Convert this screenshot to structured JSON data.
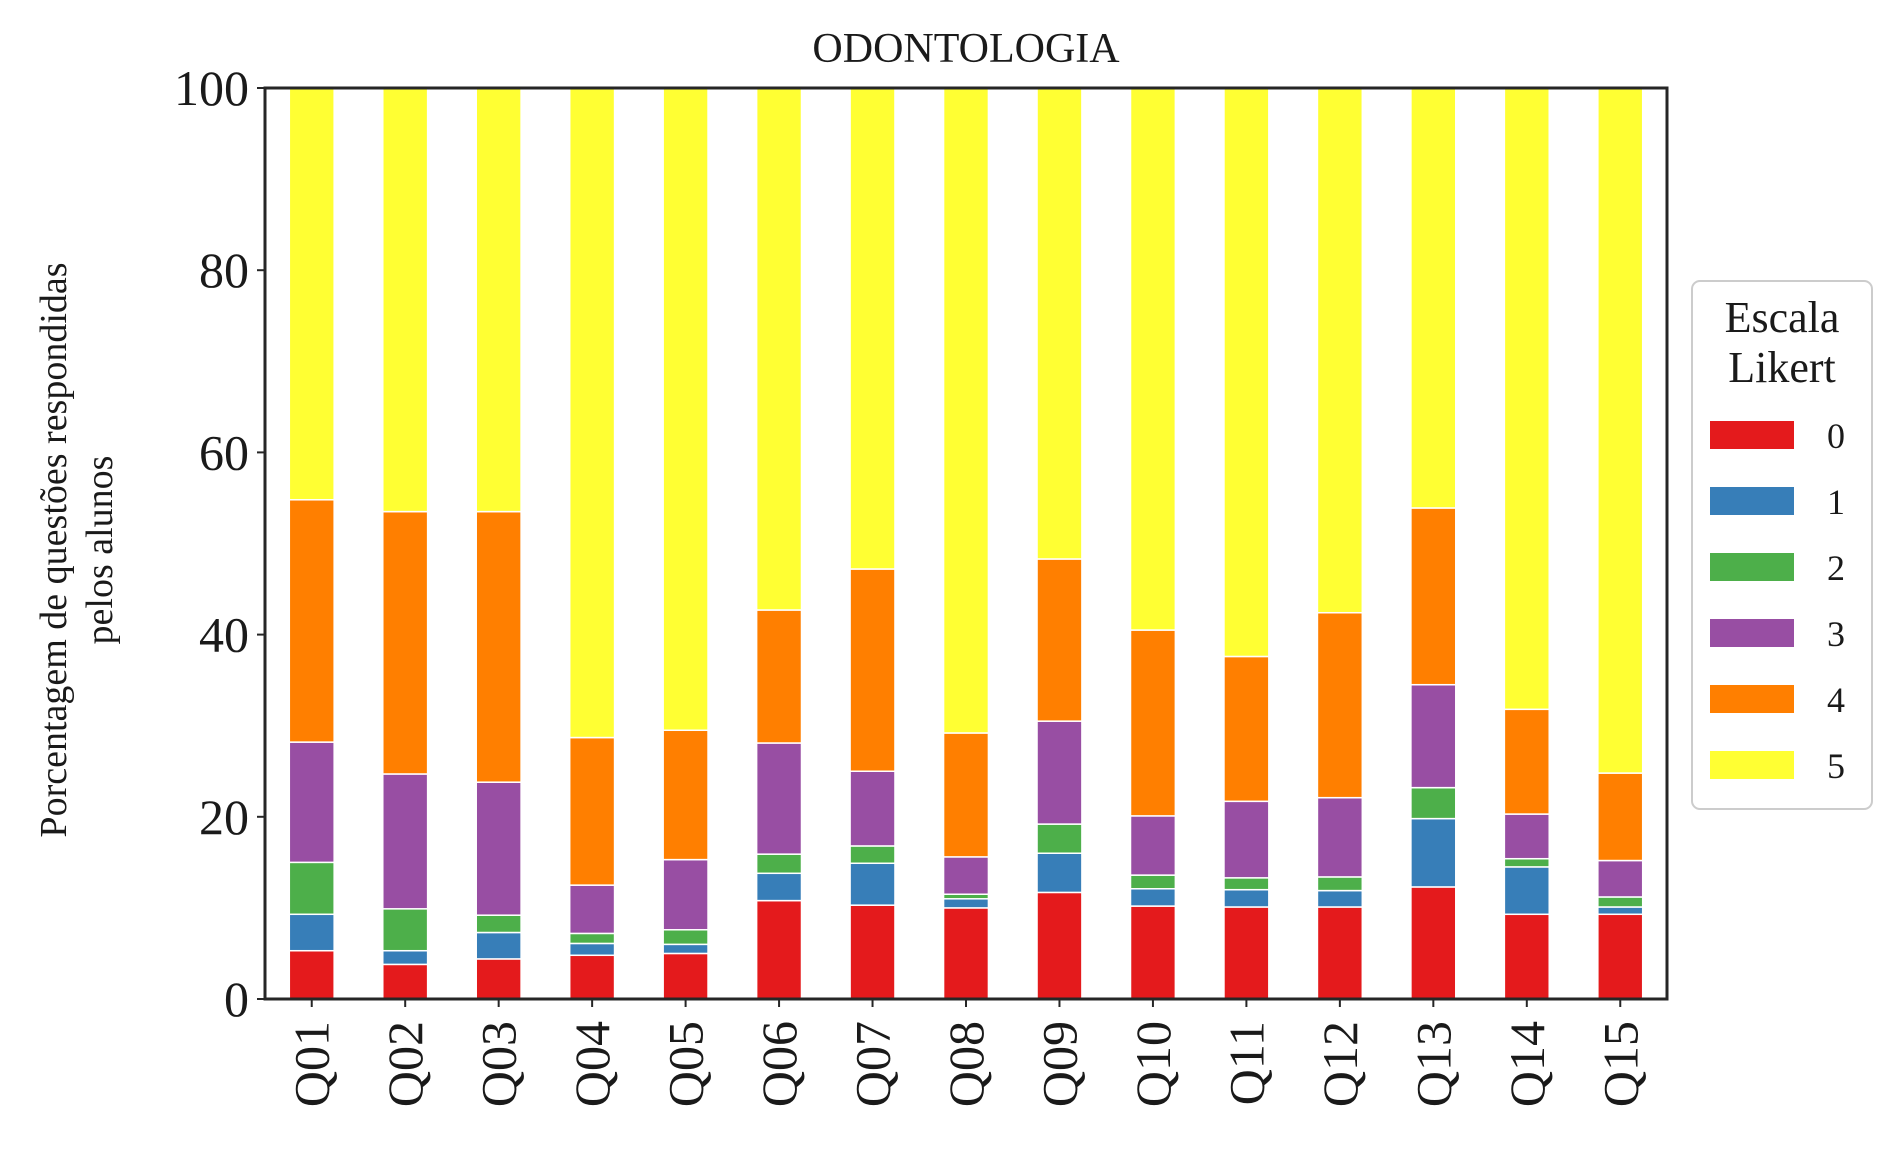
{
  "chart_data": {
    "type": "bar",
    "stacked": true,
    "title": "ODONTOLOGIA",
    "ylabel": "Porcentagem de questões respondidas pelos alunos",
    "ylabel_lines": [
      "Porcentagem de questões respondidas",
      "pelos alunos"
    ],
    "xlabel": "",
    "ylim": [
      0,
      100
    ],
    "yticks": [
      "0",
      "20",
      "40",
      "60",
      "80",
      "100"
    ],
    "categories": [
      "Q01",
      "Q02",
      "Q03",
      "Q04",
      "Q05",
      "Q06",
      "Q07",
      "Q08",
      "Q09",
      "Q10",
      "Q11",
      "Q12",
      "Q13",
      "Q14",
      "Q15"
    ],
    "grid": false,
    "legend": {
      "title": "Escala Likert",
      "title_lines": [
        "Escala",
        "Likert"
      ],
      "placement": "right"
    },
    "series": [
      {
        "name": "0",
        "color": "#e41a1c",
        "values": [
          5.3,
          3.8,
          4.4,
          4.8,
          5.0,
          10.8,
          10.3,
          10.0,
          11.7,
          10.2,
          10.1,
          10.1,
          12.3,
          9.3,
          9.3
        ]
      },
      {
        "name": "1",
        "color": "#377eb8",
        "values": [
          4.0,
          1.5,
          2.9,
          1.3,
          1.0,
          3.0,
          4.6,
          1.0,
          4.3,
          1.9,
          1.9,
          1.8,
          7.5,
          5.2,
          0.8
        ]
      },
      {
        "name": "2",
        "color": "#4daf4a",
        "values": [
          5.7,
          4.6,
          1.9,
          1.1,
          1.6,
          2.1,
          1.9,
          0.5,
          3.2,
          1.5,
          1.3,
          1.5,
          3.4,
          0.9,
          1.1
        ]
      },
      {
        "name": "3",
        "color": "#984ea3",
        "values": [
          13.2,
          14.8,
          14.6,
          5.3,
          7.7,
          12.2,
          8.2,
          4.1,
          11.3,
          6.5,
          8.4,
          8.7,
          11.3,
          4.9,
          4.0
        ]
      },
      {
        "name": "4",
        "color": "#ff7f00",
        "values": [
          26.6,
          28.8,
          29.7,
          16.2,
          14.2,
          14.6,
          22.2,
          13.6,
          17.8,
          20.4,
          15.9,
          20.3,
          19.4,
          11.5,
          9.6
        ]
      },
      {
        "name": "5",
        "color": "#ffff33",
        "values": [
          45.2,
          46.5,
          46.5,
          71.3,
          70.5,
          57.3,
          52.8,
          70.8,
          51.7,
          59.5,
          62.4,
          57.6,
          46.1,
          68.2,
          75.2
        ]
      }
    ]
  }
}
